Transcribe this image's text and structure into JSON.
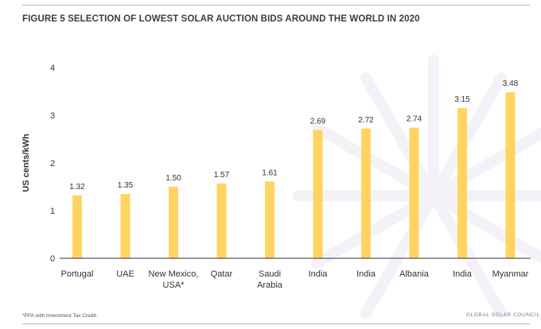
{
  "figure": {
    "title": "FIGURE 5 SELECTION OF LOWEST SOLAR AUCTION BIDS AROUND THE WORLD IN 2020",
    "footnote": "*PPA with Investment Tax Credit.",
    "credit": "GLOBAL SOLAR COUNCIL"
  },
  "colors": {
    "bar": "#ffd460",
    "axis": "#333333",
    "rule": "#b9b2d6"
  },
  "chart_data": {
    "type": "bar",
    "title": "FIGURE 5 SELECTION OF LOWEST SOLAR AUCTION BIDS AROUND THE WORLD IN 2020",
    "xlabel": "",
    "ylabel": "US cents/kWh",
    "ylim": [
      0,
      4
    ],
    "yticks": [
      0,
      1,
      2,
      3,
      4
    ],
    "grid": false,
    "categories": [
      "Portugal",
      "UAE",
      "New Mexico,\nUSA*",
      "Qatar",
      "Saudi\nArabia",
      "India",
      "India",
      "Albania",
      "India",
      "Myanmar"
    ],
    "values": [
      1.32,
      1.35,
      1.5,
      1.57,
      1.61,
      2.69,
      2.72,
      2.74,
      3.15,
      3.48
    ],
    "data_labels": [
      "1.32",
      "1.35",
      "1.50",
      "1.57",
      "1.61",
      "2.69",
      "2.72",
      "2.74",
      "3.15",
      "3.48"
    ]
  }
}
